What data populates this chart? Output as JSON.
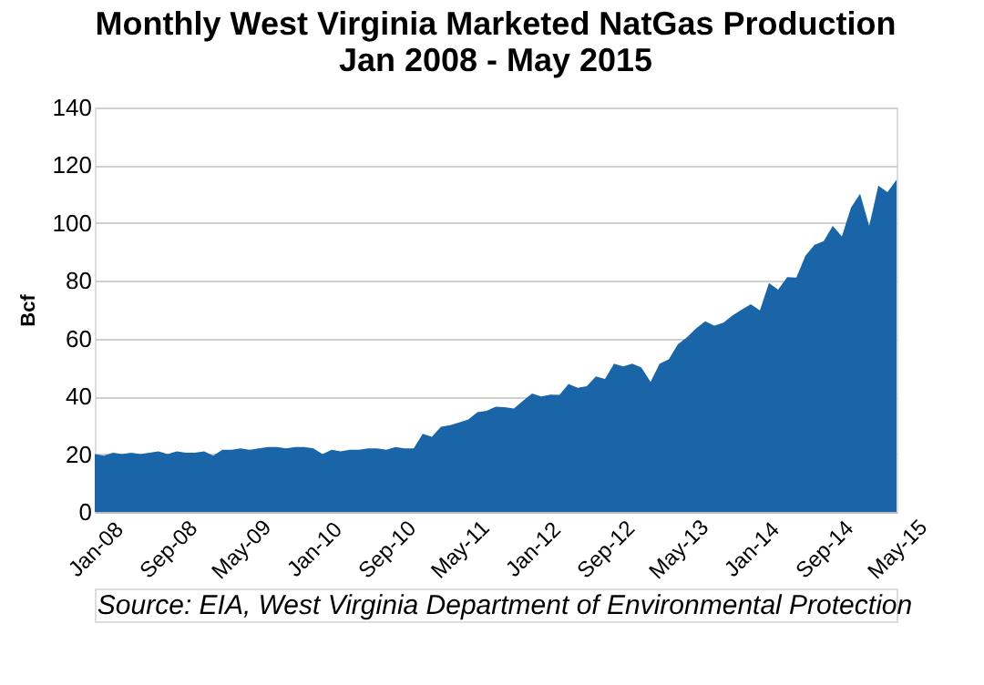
{
  "chart_data": {
    "type": "area",
    "title": [
      "Monthly West Virginia Marketed NatGas Production",
      "Jan 2008 - May 2015"
    ],
    "ylabel": "Bcf",
    "categories": [
      "Jan-08",
      null,
      null,
      null,
      null,
      null,
      null,
      null,
      "Sep-08",
      null,
      null,
      null,
      null,
      null,
      null,
      null,
      "May-09",
      null,
      null,
      null,
      null,
      null,
      null,
      null,
      "Jan-10",
      null,
      null,
      null,
      null,
      null,
      null,
      null,
      "Sep-10",
      null,
      null,
      null,
      null,
      null,
      null,
      null,
      "May-11",
      null,
      null,
      null,
      null,
      null,
      null,
      null,
      "Jan-12",
      null,
      null,
      null,
      null,
      null,
      null,
      null,
      "Sep-12",
      null,
      null,
      null,
      null,
      null,
      null,
      null,
      "May-13",
      null,
      null,
      null,
      null,
      null,
      null,
      null,
      "Jan-14",
      null,
      null,
      null,
      null,
      null,
      null,
      null,
      "Sep-14",
      null,
      null,
      null,
      null,
      null,
      null,
      null,
      "May-15"
    ],
    "series": [
      {
        "color": "#1a65a8",
        "values": [
          20,
          19.5,
          20.5,
          20,
          20.5,
          20,
          20.5,
          21,
          20,
          21,
          20.5,
          20.5,
          21,
          19.5,
          21.5,
          21.5,
          22,
          21.5,
          22,
          22.5,
          22.5,
          22,
          22.5,
          22.5,
          22,
          20,
          21.5,
          21,
          21.5,
          21.5,
          22,
          22,
          21.5,
          22.5,
          22,
          22,
          27,
          26,
          29.5,
          30,
          31,
          32,
          34.5,
          35,
          36.4,
          36.3,
          35.8,
          38.5,
          41,
          40,
          40.6,
          40.5,
          44.3,
          43,
          43.5,
          46.9,
          46,
          51.3,
          50.4,
          51.3,
          50,
          45,
          51.3,
          52.8,
          58,
          60.5,
          63.5,
          66,
          64.5,
          65.5,
          68,
          70,
          71.9,
          69.8,
          79.2,
          76.9,
          81.3,
          81.1,
          88.7,
          92.5,
          93.7,
          99,
          95.4,
          105.3,
          110.1,
          99,
          113,
          110.7,
          115
        ]
      }
    ],
    "ylim": [
      0,
      140
    ],
    "yticks": [
      0,
      20,
      40,
      60,
      80,
      100,
      120,
      140
    ],
    "grid": "y",
    "annotations": [
      "Source: EIA, West Virginia Department of Environmental Protection"
    ]
  }
}
